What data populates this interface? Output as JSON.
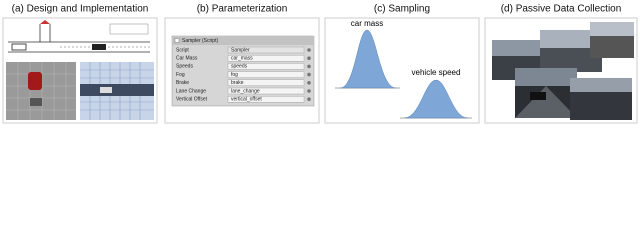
{
  "panels": [
    {
      "title": "(a) Design and Implementation"
    },
    {
      "title": "(b) Parameterization",
      "inspector": {
        "header": "Sampler (Script)",
        "rows": [
          [
            "Script",
            "Sampler"
          ],
          [
            "Car Mass",
            "car_mass"
          ],
          [
            "Speeds",
            "speeds"
          ],
          [
            "Fog",
            "fog"
          ],
          [
            "Brake",
            "brake"
          ],
          [
            "Lane Change",
            "lane_change"
          ],
          [
            "Vertical Offset",
            "vertical_offset"
          ]
        ]
      }
    },
    {
      "title": "(c) Sampling",
      "labels": [
        "car mass",
        "vehicle speed"
      ]
    },
    {
      "title": "(d) Passive Data Collection"
    }
  ]
}
